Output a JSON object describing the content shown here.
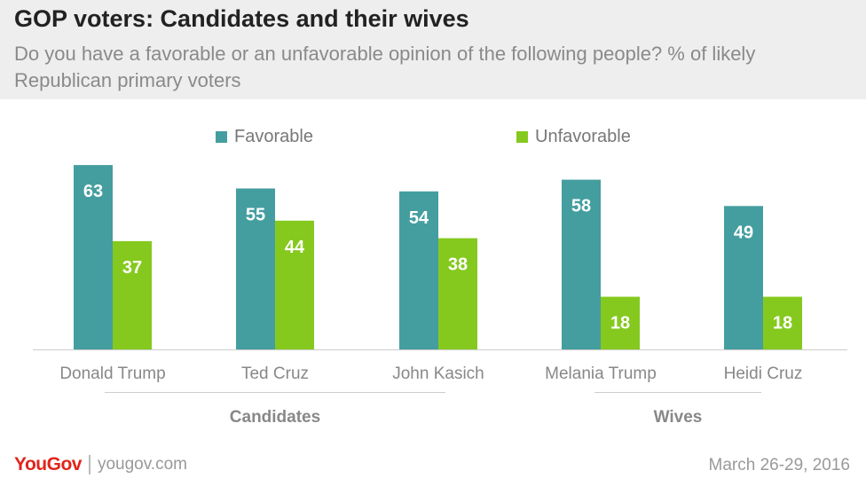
{
  "header": {
    "title": "GOP voters: Candidates and their wives",
    "subtitle": "Do you have a favorable or an unfavorable opinion of the following people? % of likely Republican primary voters"
  },
  "legend": [
    {
      "label": "Favorable",
      "color": "#449e9f"
    },
    {
      "label": "Unfavorable",
      "color": "#85c91e"
    }
  ],
  "chart_data": {
    "type": "bar",
    "categories": [
      "Donald Trump",
      "Ted Cruz",
      "John Kasich",
      "Melania Trump",
      "Heidi Cruz"
    ],
    "groups": [
      {
        "label": "Candidates",
        "categories": [
          "Donald Trump",
          "Ted Cruz",
          "John Kasich"
        ]
      },
      {
        "label": "Wives",
        "categories": [
          "Melania Trump",
          "Heidi Cruz"
        ]
      }
    ],
    "series": [
      {
        "name": "Favorable",
        "color": "#449e9f",
        "values": [
          63,
          55,
          54,
          58,
          49
        ]
      },
      {
        "name": "Unfavorable",
        "color": "#85c91e",
        "values": [
          37,
          44,
          38,
          18,
          18
        ]
      }
    ],
    "ylim": [
      0,
      100
    ],
    "grid": false,
    "legend_position": "top"
  },
  "footer": {
    "logo": "YouGov",
    "site": "yougov.com",
    "date": "March 26-29, 2016"
  }
}
